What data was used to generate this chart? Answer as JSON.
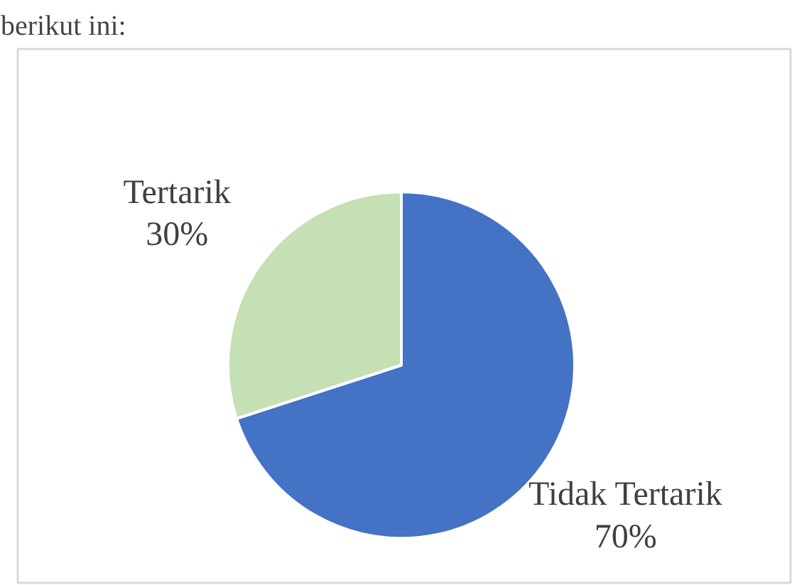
{
  "chart_data": {
    "type": "pie",
    "categories": [
      "Tidak Tertarik",
      "Tertarik"
    ],
    "values": [
      70,
      30
    ],
    "colors": [
      "#4472c4",
      "#c5e0b4"
    ],
    "value_labels": [
      "70%",
      "30%"
    ],
    "annotations": [
      "berikut ini:"
    ]
  }
}
